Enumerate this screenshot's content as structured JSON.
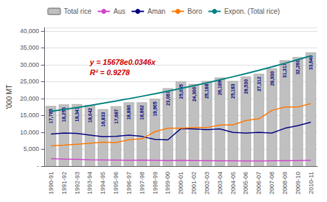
{
  "chart_data": {
    "type": "bar",
    "ylabel": "'000 MT",
    "categories": [
      "1990-91",
      "1991-92",
      "1992-93",
      "1993-94",
      "1994-95",
      "1995-96",
      "1996-97",
      "1997-98",
      "1998-99",
      "1999-00",
      "2000-01",
      "2001-02",
      "2002-03",
      "2003-04",
      "2004-05",
      "2005-06",
      "2006-07",
      "2007-08",
      "2008-09",
      "2009-10",
      "2010-11"
    ],
    "series": [
      {
        "name": "Total rice",
        "type": "bar",
        "color": "#C0C0C0",
        "values": [
          17785,
          18255,
          18341,
          18042,
          16833,
          17687,
          18880,
          18862,
          19905,
          23067,
          25085,
          24300,
          25168,
          26189,
          25183,
          26530,
          27312,
          28930,
          31317,
          32260,
          33640
        ],
        "value_labels": [
          "17,785",
          "18,255",
          "18,341",
          "18,042",
          "16,833",
          "17,687",
          "18,880",
          "18,862",
          "19,905",
          "23,067",
          "25,085",
          "24,300",
          "25,168",
          "26,189",
          "25,183",
          "26,530",
          "27,312",
          "28,930",
          "31,317",
          "32,260",
          "33,640"
        ]
      },
      {
        "name": "Aus",
        "type": "line",
        "color": "#CC44CC",
        "values": [
          2200,
          2100,
          2000,
          1900,
          1850,
          1800,
          1750,
          1800,
          1750,
          1700,
          1750,
          1700,
          1650,
          1600,
          1600,
          1550,
          1550,
          1600,
          1650,
          1700,
          1750
        ]
      },
      {
        "name": "Aman",
        "type": "line",
        "color": "#000080",
        "values": [
          9500,
          9800,
          9700,
          9200,
          8700,
          8800,
          9200,
          8800,
          7900,
          7800,
          11100,
          11000,
          10800,
          11000,
          10000,
          9800,
          10000,
          9800,
          11200,
          12000,
          13000
        ]
      },
      {
        "name": "Boro",
        "type": "line",
        "color": "#FF7700",
        "values": [
          6000,
          6200,
          6500,
          6800,
          7100,
          7000,
          7800,
          8100,
          10200,
          11200,
          11200,
          11400,
          11400,
          12200,
          12200,
          13500,
          14000,
          16500,
          17500,
          17500,
          18500
        ]
      },
      {
        "name": "Expon. (Total rice)",
        "type": "line",
        "color": "#008080",
        "values": [
          16200,
          16760,
          17350,
          17965,
          18610,
          19275,
          19965,
          20680,
          21420,
          22185,
          22980,
          23800,
          24650,
          25530,
          26440,
          27385,
          28360,
          29375,
          30420,
          31510,
          32640
        ]
      }
    ],
    "annotations": [
      {
        "text": "y = 15678e0.0346x",
        "color": "#CC0000"
      },
      {
        "text": "R² = 0.9278",
        "color": "#CC0000"
      }
    ],
    "ylim": [
      0,
      41000
    ],
    "yticks": [
      {
        "value": 0,
        "label": "-"
      },
      {
        "value": 5000,
        "label": "5,000"
      },
      {
        "value": 10000,
        "label": "10,000"
      },
      {
        "value": 15000,
        "label": "15,000"
      },
      {
        "value": 20000,
        "label": "20,000"
      },
      {
        "value": 25000,
        "label": "25,000"
      },
      {
        "value": 30000,
        "label": "30,000"
      },
      {
        "value": 35000,
        "label": "35,000"
      },
      {
        "value": 40000,
        "label": "40,000"
      }
    ],
    "grid": true,
    "legend": "top",
    "data_labels": true
  }
}
